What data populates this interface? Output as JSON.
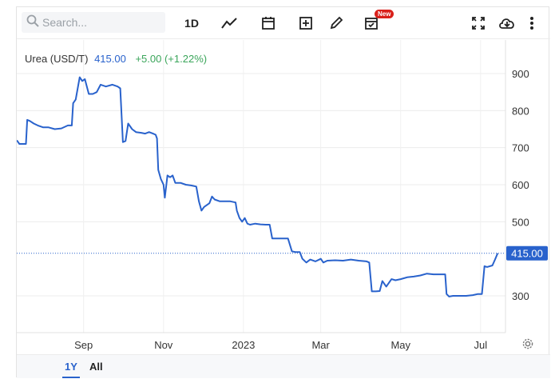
{
  "toolbar": {
    "search_placeholder": "Search...",
    "interval_label": "1D",
    "new_badge": "New",
    "icons": [
      "search-icon",
      "line-chart-icon",
      "calendar-icon",
      "add-indicator-icon",
      "draw-pencil-icon",
      "calendar-check-icon",
      "fullscreen-icon",
      "download-cloud-icon",
      "more-vertical-icon"
    ]
  },
  "legend": {
    "symbol": "Urea (USD/T)",
    "price": "415.00",
    "change": "+5.00 (+1.22%)"
  },
  "range_buttons": {
    "one_year": "1Y",
    "all": "All"
  },
  "colors": {
    "line": "#2962cc",
    "change_positive": "#3aa55a",
    "badge": "#d9201a"
  },
  "chart_data": {
    "type": "line",
    "title": "Urea (USD/T)",
    "xlabel": "",
    "ylabel": "",
    "x_ticks": [
      "Sep",
      "Nov",
      "2023",
      "Mar",
      "May",
      "Jul"
    ],
    "y_ticks": [
      900,
      800,
      700,
      600,
      500,
      300
    ],
    "ylim": [
      200,
      1000
    ],
    "xlim": [
      "2022-07-12",
      "2023-07-20"
    ],
    "last_value": 415.0,
    "last_value_label": "415.00",
    "grid": true,
    "series": [
      {
        "name": "Urea (USD/T)",
        "points": [
          [
            "2022-07-12",
            720
          ],
          [
            "2022-07-14",
            710
          ],
          [
            "2022-07-19",
            710
          ],
          [
            "2022-07-20",
            775
          ],
          [
            "2022-07-22",
            772
          ],
          [
            "2022-07-25",
            765
          ],
          [
            "2022-07-28",
            760
          ],
          [
            "2022-08-01",
            755
          ],
          [
            "2022-08-05",
            755
          ],
          [
            "2022-08-10",
            750
          ],
          [
            "2022-08-15",
            752
          ],
          [
            "2022-08-20",
            760
          ],
          [
            "2022-08-23",
            760
          ],
          [
            "2022-08-24",
            820
          ],
          [
            "2022-08-26",
            830
          ],
          [
            "2022-08-29",
            890
          ],
          [
            "2022-08-31",
            880
          ],
          [
            "2022-09-02",
            885
          ],
          [
            "2022-09-05",
            845
          ],
          [
            "2022-09-08",
            845
          ],
          [
            "2022-09-11",
            850
          ],
          [
            "2022-09-14",
            870
          ],
          [
            "2022-09-18",
            865
          ],
          [
            "2022-09-23",
            870
          ],
          [
            "2022-09-27",
            865
          ],
          [
            "2022-09-29",
            860
          ],
          [
            "2022-10-01",
            715
          ],
          [
            "2022-10-03",
            718
          ],
          [
            "2022-10-05",
            765
          ],
          [
            "2022-10-08",
            750
          ],
          [
            "2022-10-11",
            742
          ],
          [
            "2022-10-15",
            740
          ],
          [
            "2022-10-18",
            738
          ],
          [
            "2022-10-21",
            742
          ],
          [
            "2022-10-24",
            738
          ],
          [
            "2022-10-26",
            735
          ],
          [
            "2022-10-27",
            725
          ],
          [
            "2022-10-28",
            640
          ],
          [
            "2022-10-30",
            615
          ],
          [
            "2022-11-01",
            600
          ],
          [
            "2022-11-02",
            565
          ],
          [
            "2022-11-04",
            625
          ],
          [
            "2022-11-06",
            620
          ],
          [
            "2022-11-08",
            625
          ],
          [
            "2022-11-10",
            605
          ],
          [
            "2022-11-14",
            605
          ],
          [
            "2022-11-18",
            600
          ],
          [
            "2022-11-22",
            598
          ],
          [
            "2022-11-26",
            595
          ],
          [
            "2022-11-28",
            555
          ],
          [
            "2022-11-30",
            530
          ],
          [
            "2022-12-02",
            540
          ],
          [
            "2022-12-06",
            550
          ],
          [
            "2022-12-08",
            568
          ],
          [
            "2022-12-10",
            560
          ],
          [
            "2022-12-14",
            555
          ],
          [
            "2022-12-18",
            555
          ],
          [
            "2022-12-22",
            555
          ],
          [
            "2022-12-26",
            552
          ],
          [
            "2022-12-27",
            530
          ],
          [
            "2022-12-29",
            510
          ],
          [
            "2022-12-31",
            500
          ],
          [
            "2023-01-02",
            510
          ],
          [
            "2023-01-04",
            495
          ],
          [
            "2023-01-06",
            492
          ],
          [
            "2023-01-10",
            495
          ],
          [
            "2023-01-14",
            493
          ],
          [
            "2023-01-18",
            492
          ],
          [
            "2023-01-21",
            492
          ],
          [
            "2023-01-23",
            455
          ],
          [
            "2023-01-26",
            455
          ],
          [
            "2023-02-01",
            455
          ],
          [
            "2023-02-04",
            455
          ],
          [
            "2023-02-07",
            420
          ],
          [
            "2023-02-10",
            418
          ],
          [
            "2023-02-13",
            418
          ],
          [
            "2023-02-15",
            400
          ],
          [
            "2023-02-18",
            390
          ],
          [
            "2023-02-21",
            398
          ],
          [
            "2023-02-25",
            393
          ],
          [
            "2023-03-01",
            400
          ],
          [
            "2023-03-03",
            390
          ],
          [
            "2023-03-06",
            395
          ],
          [
            "2023-03-12",
            396
          ],
          [
            "2023-03-18",
            395
          ],
          [
            "2023-03-24",
            398
          ],
          [
            "2023-03-30",
            395
          ],
          [
            "2023-04-05",
            393
          ],
          [
            "2023-04-07",
            390
          ],
          [
            "2023-04-09",
            312
          ],
          [
            "2023-04-12",
            312
          ],
          [
            "2023-04-15",
            313
          ],
          [
            "2023-04-17",
            340
          ],
          [
            "2023-04-20",
            325
          ],
          [
            "2023-04-24",
            345
          ],
          [
            "2023-04-27",
            342
          ],
          [
            "2023-05-01",
            345
          ],
          [
            "2023-05-06",
            350
          ],
          [
            "2023-05-11",
            352
          ],
          [
            "2023-05-16",
            355
          ],
          [
            "2023-05-21",
            360
          ],
          [
            "2023-05-26",
            358
          ],
          [
            "2023-05-31",
            358
          ],
          [
            "2023-06-04",
            358
          ],
          [
            "2023-06-05",
            305
          ],
          [
            "2023-06-07",
            298
          ],
          [
            "2023-06-10",
            300
          ],
          [
            "2023-06-15",
            300
          ],
          [
            "2023-06-20",
            300
          ],
          [
            "2023-06-25",
            302
          ],
          [
            "2023-06-29",
            305
          ],
          [
            "2023-07-02",
            305
          ],
          [
            "2023-07-04",
            380
          ],
          [
            "2023-07-06",
            378
          ],
          [
            "2023-07-10",
            382
          ],
          [
            "2023-07-12",
            398
          ],
          [
            "2023-07-14",
            415
          ]
        ]
      }
    ]
  }
}
